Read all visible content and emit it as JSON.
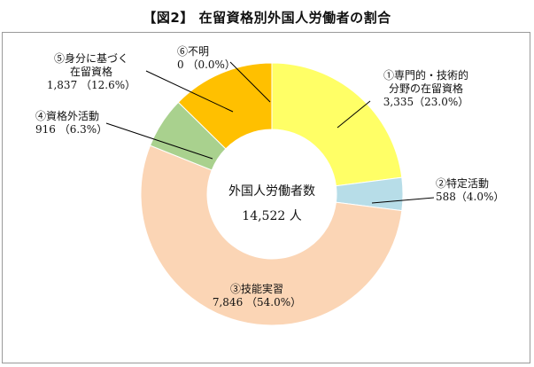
{
  "header": {
    "title": "【図2】 在留資格別外国人労働者の割合"
  },
  "center": {
    "title": "外国人労働者数",
    "value": "14,522 人"
  },
  "labels": {
    "s1": {
      "line1": "①専門的・技術的",
      "line2": "分野の在留資格",
      "line3": "3,335（23.0%）"
    },
    "s2": {
      "line1": "②特定活動",
      "line2": "588（4.0%）"
    },
    "s3": {
      "line1": "③技能実習",
      "line2": "7,846 （54.0%）"
    },
    "s4": {
      "line1": "④資格外活動",
      "line2": "916 （6.3%）"
    },
    "s5": {
      "line1": "⑤身分に基づく",
      "line2": "在留資格",
      "line3": "1,837 （12.6%）"
    },
    "s6": {
      "line1": "⑥不明",
      "line2": "0 （0.0%）"
    }
  },
  "chart_data": {
    "type": "pie",
    "variant": "donut",
    "title": "【図2】 在留資格別外国人労働者の割合",
    "total": 14522,
    "slices": [
      {
        "name": "①専門的・技術的分野の在留資格",
        "value": 3335,
        "percent": 23.0,
        "color": "#FFFF66"
      },
      {
        "name": "②特定活動",
        "value": 588,
        "percent": 4.0,
        "color": "#B7DDE8"
      },
      {
        "name": "③技能実習",
        "value": 7846,
        "percent": 54.0,
        "color": "#FBD5B5"
      },
      {
        "name": "④資格外活動",
        "value": 916,
        "percent": 6.3,
        "color": "#A9D18E"
      },
      {
        "name": "⑤身分に基づく在留資格",
        "value": 1837,
        "percent": 12.6,
        "color": "#FFC000"
      },
      {
        "name": "⑥不明",
        "value": 0,
        "percent": 0.0,
        "color": "#7F7F7F"
      }
    ]
  }
}
